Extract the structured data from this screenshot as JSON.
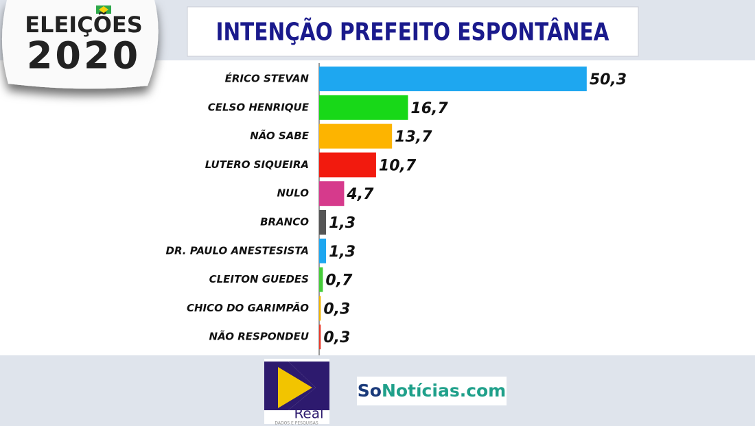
{
  "branding": {
    "badge_top": "ELEIÇÕES",
    "badge_bottom": "2020",
    "real_name": "Real",
    "real_tagline": "DADOS E PESQUISAS",
    "site_prefix": "So",
    "site_suffix": "Notícias.com"
  },
  "chart_data": {
    "type": "bar",
    "orientation": "horizontal",
    "title": "INTENÇÃO PREFEITO ESPONTÂNEA",
    "categories": [
      "ÉRICO STEVAN",
      "CELSO HENRIQUE",
      "NÃO SABE",
      "LUTERO SIQUEIRA",
      "NULO",
      "BRANCO",
      "DR. PAULO ANESTESISTA",
      "CLEITON GUEDES",
      "CHICO DO GARIMPÃO",
      "NÃO RESPONDEU"
    ],
    "values": [
      50.3,
      16.7,
      13.7,
      10.7,
      4.7,
      1.3,
      1.3,
      0.7,
      0.3,
      0.3
    ],
    "value_labels": [
      "50,3",
      "16,7",
      "13,7",
      "10,7",
      "4,7",
      "1,3",
      "1,3",
      "0,7",
      "0,3",
      "0,3"
    ],
    "colors": [
      "#1ea7f0",
      "#18d818",
      "#fdb400",
      "#f21a0e",
      "#d63a8c",
      "#555555",
      "#1ea7f0",
      "#46cc3a",
      "#f0b400",
      "#e83a2a"
    ]
  }
}
